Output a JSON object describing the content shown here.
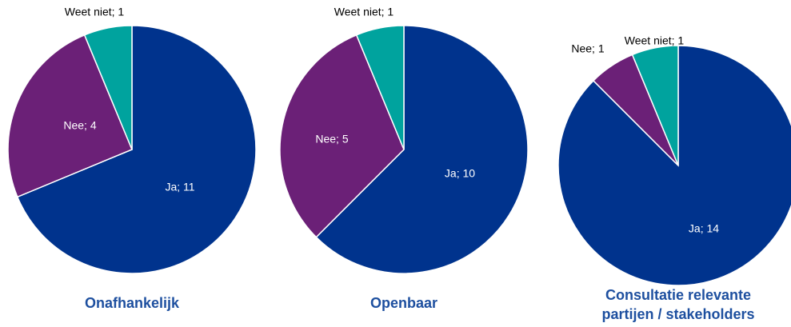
{
  "chart_data": [
    {
      "type": "pie",
      "title": [
        "Onafhankelijk"
      ],
      "values": [
        11,
        4,
        1
      ],
      "value_labels": [
        "Ja; 11",
        "Nee; 4",
        "Weet niet; 1"
      ],
      "colors": [
        "#00338d",
        "#6b2077",
        "#00a39e"
      ]
    },
    {
      "type": "pie",
      "title": [
        "Openbaar"
      ],
      "values": [
        10,
        5,
        1
      ],
      "value_labels": [
        "Ja; 10",
        "Nee; 5",
        "Weet niet; 1"
      ],
      "colors": [
        "#00338d",
        "#6b2077",
        "#00a39e"
      ]
    },
    {
      "type": "pie",
      "title": [
        "Consultatie relevante",
        "partijen / stakeholders"
      ],
      "values": [
        14,
        1,
        1
      ],
      "value_labels": [
        "Ja; 14",
        "Nee; 1",
        "Weet niet; 1"
      ],
      "colors": [
        "#00338d",
        "#6b2077",
        "#00a39e"
      ]
    }
  ]
}
